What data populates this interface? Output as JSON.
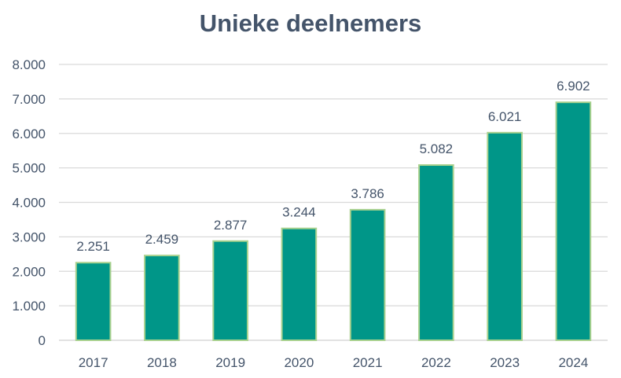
{
  "chart_data": {
    "type": "bar",
    "title": "Unieke deelnemers",
    "xlabel": "",
    "ylabel": "",
    "categories": [
      "2017",
      "2018",
      "2019",
      "2020",
      "2021",
      "2022",
      "2023",
      "2024"
    ],
    "values": [
      2251,
      2459,
      2877,
      3244,
      3786,
      5082,
      6021,
      6902
    ],
    "data_labels": [
      "2.251",
      "2.459",
      "2.877",
      "3.244",
      "3.786",
      "5.082",
      "6.021",
      "6.902"
    ],
    "ylim": [
      0,
      8000
    ],
    "yticks": [
      0,
      1000,
      2000,
      3000,
      4000,
      5000,
      6000,
      7000,
      8000
    ],
    "ytick_labels": [
      "0",
      "1.000",
      "2.000",
      "3.000",
      "4.000",
      "5.000",
      "6.000",
      "7.000",
      "8.000"
    ],
    "grid": true,
    "legend": "none",
    "colors": {
      "bar_fill": "#009688",
      "bar_border": "#A9D18E",
      "gridline": "#D9D9D9",
      "text": "#44546A"
    }
  }
}
